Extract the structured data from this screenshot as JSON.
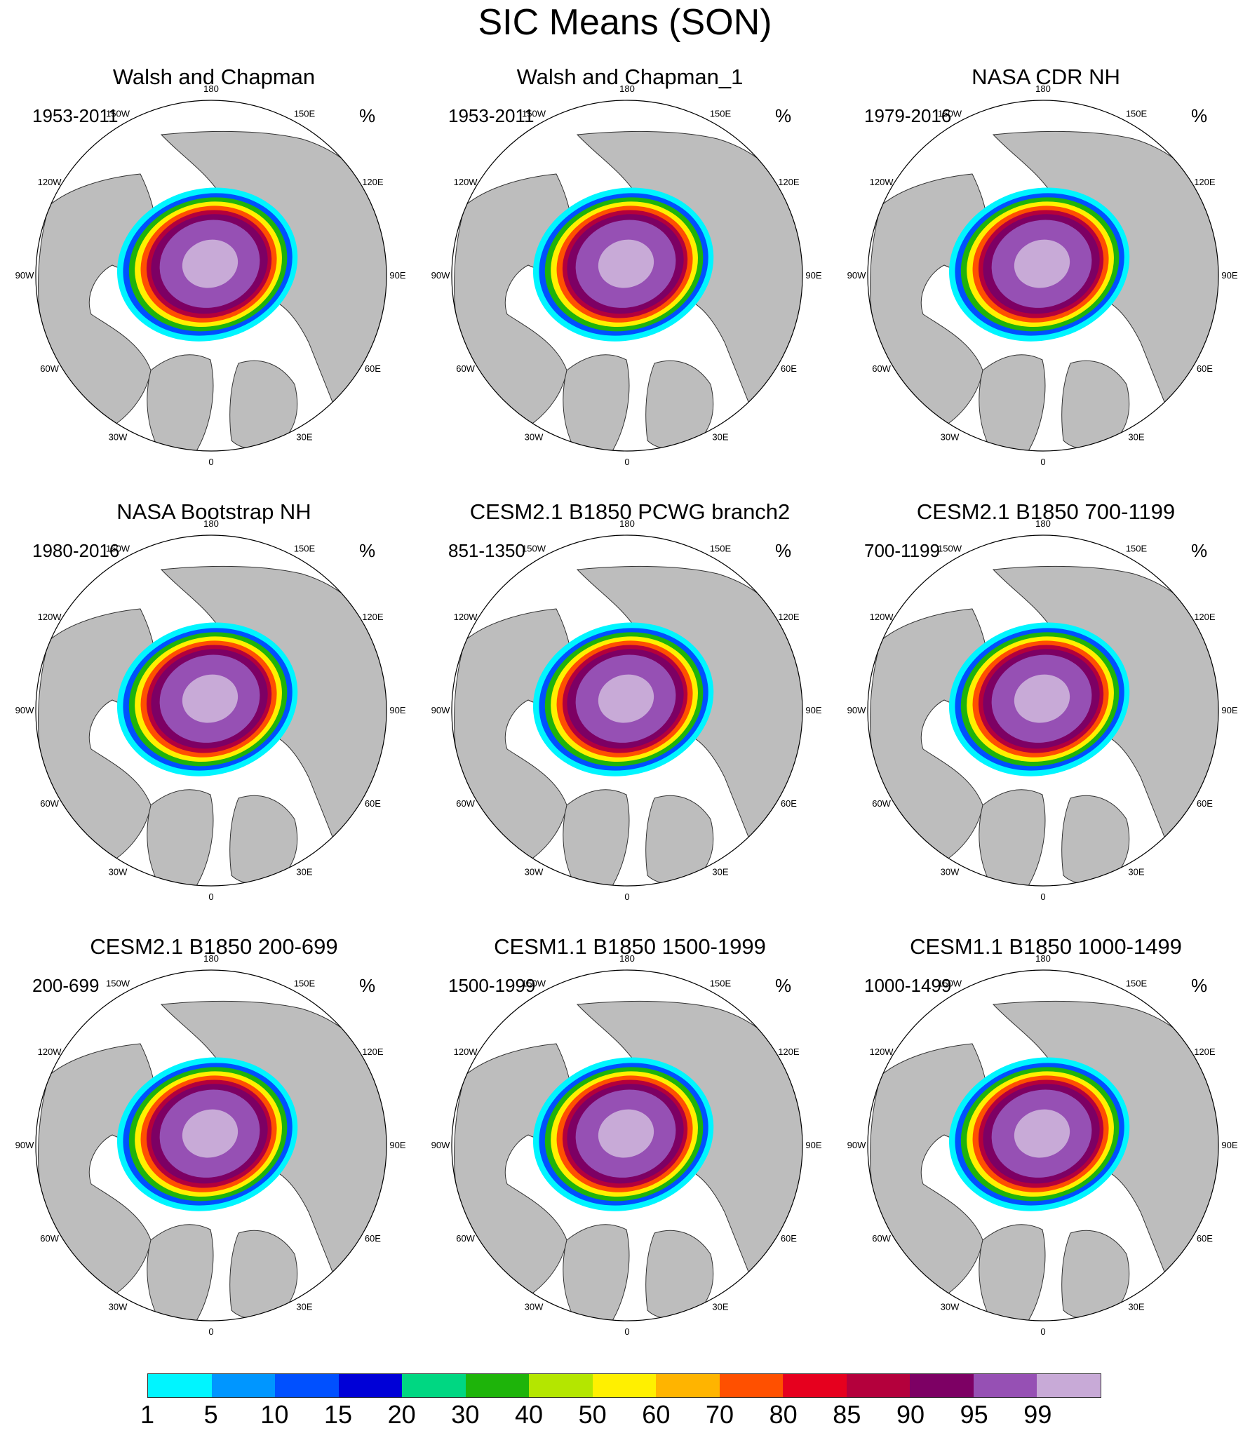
{
  "title": "SIC Means (SON)",
  "units": "%",
  "colors": {
    "land": "#bdbdbd",
    "ocean": "#ffffff",
    "coast": "#333333"
  },
  "longitude_labels": [
    "180",
    "150E",
    "120E",
    "90E",
    "60E",
    "30E",
    "0",
    "30W",
    "60W",
    "90W",
    "120W",
    "150W"
  ],
  "panels": [
    {
      "title": "Walsh and Chapman",
      "period": "1953-2011",
      "units": "%"
    },
    {
      "title": "Walsh and Chapman_1",
      "period": "1953-2011",
      "units": "%"
    },
    {
      "title": "NASA CDR NH",
      "period": "1979-2016",
      "units": "%"
    },
    {
      "title": "NASA Bootstrap NH",
      "period": "1980-2016",
      "units": "%"
    },
    {
      "title": "CESM2.1 B1850 PCWG branch2",
      "period": "851-1350",
      "units": "%"
    },
    {
      "title": "CESM2.1 B1850 700-1199",
      "period": "700-1199",
      "units": "%"
    },
    {
      "title": "CESM2.1 B1850 200-699",
      "period": "200-699",
      "units": "%"
    },
    {
      "title": "CESM1.1 B1850 1500-1999",
      "period": "1500-1999",
      "units": "%"
    },
    {
      "title": "CESM1.1 B1850 1000-1499",
      "period": "1000-1499",
      "units": "%"
    }
  ],
  "colorbar": {
    "levels": [
      "1",
      "5",
      "10",
      "15",
      "20",
      "30",
      "40",
      "50",
      "60",
      "70",
      "80",
      "85",
      "90",
      "95",
      "99"
    ],
    "colors": [
      "#00f5ff",
      "#0096ff",
      "#0050ff",
      "#0000d7",
      "#00d782",
      "#1eb40a",
      "#b4e600",
      "#fff000",
      "#ffb400",
      "#ff5000",
      "#e6001e",
      "#b4003c",
      "#7d0064",
      "#9650b4",
      "#c8aad7"
    ]
  }
}
